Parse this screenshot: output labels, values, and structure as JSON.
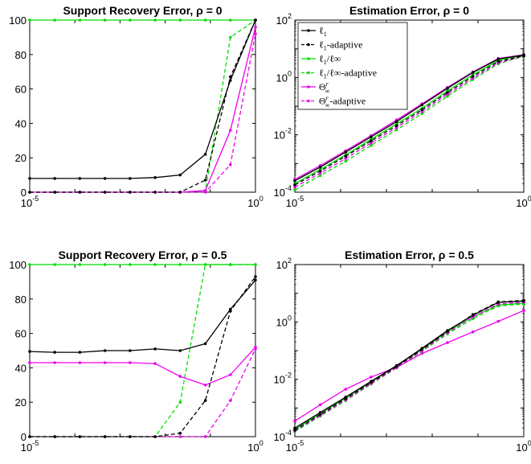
{
  "colors": {
    "black": "#000000",
    "green": "#00dd00",
    "magenta": "#ee00ee"
  },
  "x_grid": [
    -5,
    -4.444,
    -3.889,
    -3.333,
    -2.778,
    -2.222,
    -1.667,
    -1.111,
    -0.556,
    0
  ],
  "legend": [
    {
      "id": "l1",
      "label": "ℓ",
      "sub": "1",
      "rest": "",
      "color": "#000000",
      "dash": false
    },
    {
      "id": "l1a",
      "label": "ℓ",
      "sub": "1",
      "rest": "-adaptive",
      "color": "#000000",
      "dash": true
    },
    {
      "id": "linf",
      "label": "ℓ",
      "sub": "1",
      "rest": "/ℓ∞",
      "color": "#00dd00",
      "dash": false
    },
    {
      "id": "linfa",
      "label": "ℓ",
      "sub": "1",
      "rest": "/ℓ∞-adaptive",
      "color": "#00dd00",
      "dash": true
    },
    {
      "id": "theta",
      "label": "Θ",
      "sub": "∞",
      "sup": "r",
      "rest": "",
      "color": "#ee00ee",
      "dash": false
    },
    {
      "id": "thetaa",
      "label": "Θ",
      "sub": "∞",
      "sup": "r",
      "rest": "-adaptive",
      "color": "#ee00ee",
      "dash": true
    }
  ],
  "chart_data": [
    {
      "type": "line",
      "title": "Support Recovery Error,  ρ = 0",
      "xscale": "log",
      "xlim": [
        1e-05,
        1
      ],
      "xticks": [
        {
          "base": "10",
          "exp": "-5"
        },
        {
          "base": "10",
          "exp": "0"
        }
      ],
      "yscale": "linear",
      "ylim": [
        0,
        100
      ],
      "yticks": [
        "0",
        "20",
        "40",
        "60",
        "80",
        "100"
      ],
      "series": [
        {
          "id": "l1",
          "values": [
            8,
            8,
            8,
            8,
            8,
            8.5,
            10,
            22,
            65,
            100
          ]
        },
        {
          "id": "l1a",
          "values": [
            0,
            0,
            0,
            0,
            0,
            0,
            0,
            7,
            67,
            100
          ]
        },
        {
          "id": "linf",
          "values": [
            100,
            100,
            100,
            100,
            100,
            100,
            100,
            100,
            100,
            100
          ]
        },
        {
          "id": "linfa",
          "values": [
            0,
            0,
            0,
            0,
            0,
            0,
            0,
            0.5,
            90,
            100
          ]
        },
        {
          "id": "theta",
          "values": [
            0,
            0,
            0,
            0,
            0,
            0,
            0,
            1,
            36,
            96
          ]
        },
        {
          "id": "thetaa",
          "values": [
            0,
            0,
            0,
            0,
            0,
            0,
            0,
            0,
            16,
            92
          ]
        }
      ]
    },
    {
      "type": "line",
      "title": "Estimation Error,  ρ = 0",
      "xscale": "log",
      "xlim": [
        1e-05,
        1
      ],
      "xticks": [
        {
          "base": "10",
          "exp": "-5"
        },
        {
          "base": "10",
          "exp": "0"
        }
      ],
      "yscale": "log",
      "ylim": [
        0.0001,
        100
      ],
      "yticks": [
        {
          "base": "10",
          "exp": "-4"
        },
        {
          "base": "10",
          "exp": "-2"
        },
        {
          "base": "10",
          "exp": "0"
        },
        {
          "base": "10",
          "exp": "2"
        }
      ],
      "legend": "top-left",
      "series": [
        {
          "id": "l1",
          "values": [
            0.00025,
            0.00075,
            0.0025,
            0.0085,
            0.029,
            0.11,
            0.42,
            1.5,
            4.4,
            6.1
          ]
        },
        {
          "id": "l1a",
          "values": [
            0.00018,
            0.00055,
            0.0018,
            0.0062,
            0.021,
            0.075,
            0.3,
            1.1,
            3.6,
            5.7
          ]
        },
        {
          "id": "linf",
          "values": [
            0.0002,
            0.00062,
            0.002,
            0.007,
            0.024,
            0.085,
            0.34,
            1.25,
            4.0,
            6.0
          ]
        },
        {
          "id": "linfa",
          "values": [
            0.00012,
            0.00038,
            0.0012,
            0.0043,
            0.015,
            0.055,
            0.22,
            0.85,
            3.0,
            5.5
          ]
        },
        {
          "id": "theta",
          "values": [
            0.00028,
            0.00085,
            0.0028,
            0.0095,
            0.033,
            0.12,
            0.45,
            1.55,
            4.6,
            6.2
          ]
        },
        {
          "id": "thetaa",
          "values": [
            0.00015,
            0.00046,
            0.0015,
            0.0052,
            0.018,
            0.065,
            0.26,
            0.95,
            3.2,
            5.6
          ]
        }
      ]
    },
    {
      "type": "line",
      "title": "Support Recovery Error,  ρ = 0.5",
      "xscale": "log",
      "xlim": [
        1e-05,
        1
      ],
      "xticks": [
        {
          "base": "10",
          "exp": "-5"
        },
        {
          "base": "10",
          "exp": "0"
        }
      ],
      "yscale": "linear",
      "ylim": [
        0,
        100
      ],
      "yticks": [
        "0",
        "20",
        "40",
        "60",
        "80",
        "100"
      ],
      "series": [
        {
          "id": "l1",
          "values": [
            49.5,
            49,
            49,
            50,
            50,
            51,
            50,
            54,
            74,
            91
          ]
        },
        {
          "id": "l1a",
          "values": [
            0,
            0,
            0,
            0,
            0,
            0,
            2,
            21,
            73,
            93
          ]
        },
        {
          "id": "linf",
          "values": [
            100,
            100,
            100,
            100,
            100,
            100,
            100,
            100,
            100,
            100
          ]
        },
        {
          "id": "linfa",
          "values": [
            0,
            0,
            0,
            0,
            0,
            0,
            20,
            100,
            100,
            100
          ]
        },
        {
          "id": "theta",
          "values": [
            43,
            43,
            43,
            43,
            43,
            42.5,
            35,
            30,
            36,
            52
          ]
        },
        {
          "id": "thetaa",
          "values": [
            0,
            0,
            0,
            0,
            0,
            0,
            0,
            0,
            21,
            51
          ]
        }
      ]
    },
    {
      "type": "line",
      "title": "Estimation Error,  ρ = 0.5",
      "xscale": "log",
      "xlim": [
        1e-05,
        1
      ],
      "xticks": [
        {
          "base": "10",
          "exp": "-5"
        },
        {
          "base": "10",
          "exp": "0"
        }
      ],
      "yscale": "log",
      "ylim": [
        0.0001,
        100
      ],
      "yticks": [
        {
          "base": "10",
          "exp": "-4"
        },
        {
          "base": "10",
          "exp": "-2"
        },
        {
          "base": "10",
          "exp": "0"
        },
        {
          "base": "10",
          "exp": "2"
        }
      ],
      "series": [
        {
          "id": "l1",
          "values": [
            0.0002,
            0.0007,
            0.0024,
            0.0085,
            0.03,
            0.12,
            0.5,
            1.7,
            4.8,
            5.3
          ]
        },
        {
          "id": "l1a",
          "values": [
            0.00017,
            0.0006,
            0.0021,
            0.0078,
            0.028,
            0.11,
            0.47,
            1.8,
            5.0,
            5.6
          ]
        },
        {
          "id": "linf",
          "values": [
            0.00018,
            0.00063,
            0.0022,
            0.008,
            0.029,
            0.11,
            0.45,
            1.5,
            3.9,
            4.5
          ]
        },
        {
          "id": "linfa",
          "values": [
            0.00015,
            0.00052,
            0.0018,
            0.0068,
            0.025,
            0.095,
            0.38,
            1.3,
            3.6,
            4.2
          ]
        },
        {
          "id": "theta",
          "values": [
            0.00035,
            0.0013,
            0.0045,
            0.012,
            0.026,
            0.08,
            0.19,
            0.45,
            1.05,
            2.5
          ]
        },
        {
          "id": "thetaa",
          "values": [
            0.00016,
            0.00055,
            0.0019,
            0.0072,
            0.026,
            0.1,
            0.42,
            1.5,
            4.2,
            4.8
          ]
        }
      ]
    }
  ]
}
